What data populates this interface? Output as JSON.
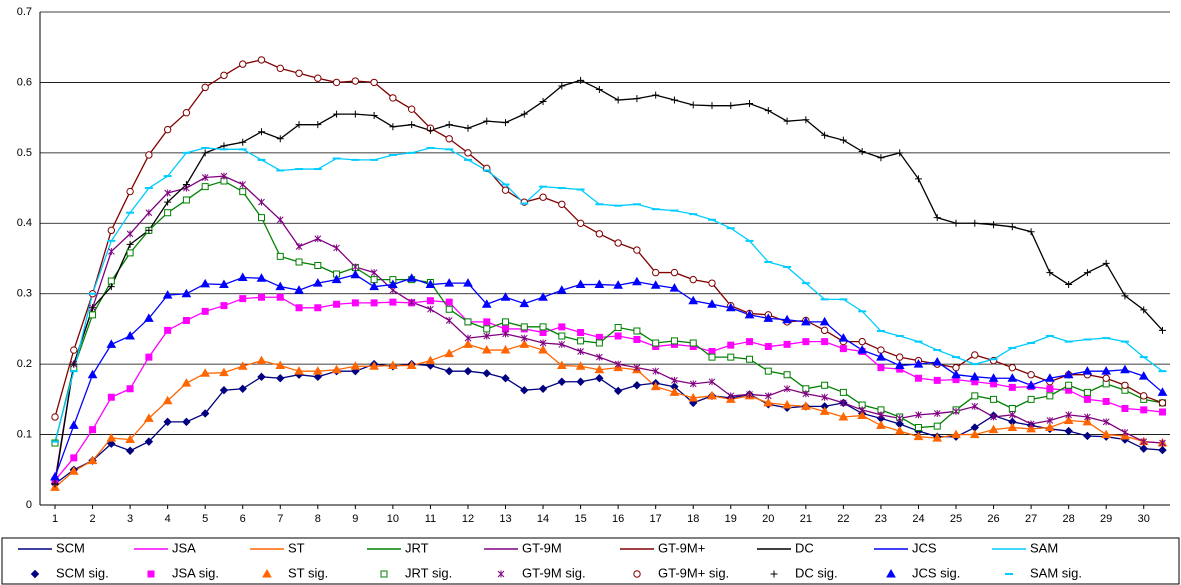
{
  "chart_data": {
    "type": "line",
    "x": [
      1,
      1.5,
      2,
      2.5,
      3,
      3.5,
      4,
      4.5,
      5,
      5.5,
      6,
      6.5,
      7,
      7.5,
      8,
      8.5,
      9,
      9.5,
      10,
      10.5,
      11,
      11.5,
      12,
      12.5,
      13,
      13.5,
      14,
      14.5,
      15,
      15.5,
      16,
      16.5,
      17,
      17.5,
      18,
      18.5,
      19,
      19.5,
      20,
      20.5,
      21,
      21.5,
      22,
      22.5,
      23,
      23.5,
      24,
      24.5,
      25,
      25.5,
      26,
      26.5,
      27,
      27.5,
      28,
      28.5,
      29,
      29.5,
      30,
      30.5
    ],
    "xlim": [
      0.6,
      30.7
    ],
    "xticks": [
      1,
      2,
      3,
      4,
      5,
      6,
      7,
      8,
      9,
      10,
      11,
      12,
      13,
      14,
      15,
      16,
      17,
      18,
      19,
      20,
      21,
      22,
      23,
      24,
      25,
      26,
      27,
      28,
      29,
      30
    ],
    "ylim": [
      0,
      0.7
    ],
    "yticks": [
      0,
      0.1,
      0.2,
      0.3,
      0.4,
      0.5,
      0.6,
      0.7
    ],
    "grid": true,
    "series": [
      {
        "name": "SCM",
        "marker_name": "SCM sig.",
        "color": "#000080",
        "marker": "diamond",
        "values": [
          0.03,
          0.05,
          0.063,
          0.087,
          0.077,
          0.09,
          0.118,
          0.118,
          0.13,
          0.163,
          0.165,
          0.182,
          0.18,
          0.185,
          0.182,
          0.19,
          0.19,
          0.2,
          0.197,
          0.2,
          0.198,
          0.19,
          0.19,
          0.187,
          0.18,
          0.163,
          0.165,
          0.175,
          0.175,
          0.18,
          0.162,
          0.17,
          0.173,
          0.168,
          0.145,
          0.155,
          0.152,
          0.157,
          0.143,
          0.138,
          0.14,
          0.14,
          0.145,
          0.13,
          0.123,
          0.115,
          0.105,
          0.097,
          0.097,
          0.11,
          0.127,
          0.118,
          0.113,
          0.108,
          0.105,
          0.098,
          0.097,
          0.093,
          0.08,
          0.078
        ]
      },
      {
        "name": "JSA",
        "marker_name": "JSA sig.",
        "color": "#ff00ff",
        "marker": "square",
        "values": [
          0.035,
          0.067,
          0.107,
          0.153,
          0.165,
          0.21,
          0.248,
          0.262,
          0.275,
          0.283,
          0.293,
          0.295,
          0.295,
          0.28,
          0.28,
          0.285,
          0.287,
          0.287,
          0.288,
          0.287,
          0.29,
          0.288,
          0.26,
          0.26,
          0.25,
          0.25,
          0.245,
          0.253,
          0.245,
          0.238,
          0.24,
          0.235,
          0.225,
          0.228,
          0.225,
          0.218,
          0.227,
          0.232,
          0.225,
          0.228,
          0.232,
          0.232,
          0.222,
          0.218,
          0.195,
          0.193,
          0.18,
          0.177,
          0.178,
          0.175,
          0.172,
          0.167,
          0.168,
          0.165,
          0.163,
          0.15,
          0.147,
          0.137,
          0.135,
          0.132
        ]
      },
      {
        "name": "ST",
        "marker_name": "ST sig.",
        "color": "#ff6600",
        "marker": "triangle",
        "values": [
          0.025,
          0.048,
          0.063,
          0.095,
          0.093,
          0.123,
          0.148,
          0.173,
          0.187,
          0.188,
          0.197,
          0.205,
          0.198,
          0.19,
          0.19,
          0.192,
          0.197,
          0.197,
          0.198,
          0.198,
          0.205,
          0.215,
          0.228,
          0.22,
          0.22,
          0.228,
          0.22,
          0.198,
          0.197,
          0.192,
          0.195,
          0.192,
          0.168,
          0.16,
          0.152,
          0.155,
          0.15,
          0.155,
          0.145,
          0.142,
          0.14,
          0.133,
          0.125,
          0.127,
          0.113,
          0.105,
          0.097,
          0.095,
          0.1,
          0.1,
          0.107,
          0.11,
          0.108,
          0.11,
          0.12,
          0.118,
          0.1,
          0.098,
          0.09,
          0.088
        ]
      },
      {
        "name": "JRT",
        "marker_name": "JRT sig.",
        "color": "#008000",
        "marker": "open-square",
        "values": [
          0.088,
          0.195,
          0.27,
          0.318,
          0.358,
          0.39,
          0.415,
          0.433,
          0.452,
          0.46,
          0.445,
          0.408,
          0.353,
          0.345,
          0.34,
          0.328,
          0.337,
          0.32,
          0.32,
          0.32,
          0.316,
          0.278,
          0.26,
          0.25,
          0.26,
          0.253,
          0.253,
          0.24,
          0.233,
          0.23,
          0.252,
          0.247,
          0.23,
          0.233,
          0.23,
          0.21,
          0.21,
          0.207,
          0.19,
          0.185,
          0.165,
          0.17,
          0.16,
          0.142,
          0.135,
          0.125,
          0.11,
          0.112,
          0.135,
          0.155,
          0.15,
          0.137,
          0.15,
          0.155,
          0.17,
          0.16,
          0.172,
          0.163,
          0.15,
          0.145
        ]
      },
      {
        "name": "GT-9M",
        "marker_name": "GT-9M sig.",
        "color": "#800080",
        "marker": "asterisk",
        "values": [
          0.035,
          0.2,
          0.28,
          0.36,
          0.385,
          0.415,
          0.443,
          0.45,
          0.465,
          0.467,
          0.455,
          0.43,
          0.405,
          0.367,
          0.378,
          0.365,
          0.338,
          0.33,
          0.305,
          0.288,
          0.278,
          0.262,
          0.237,
          0.24,
          0.243,
          0.237,
          0.23,
          0.228,
          0.218,
          0.21,
          0.2,
          0.195,
          0.19,
          0.177,
          0.172,
          0.175,
          0.155,
          0.157,
          0.155,
          0.165,
          0.158,
          0.153,
          0.145,
          0.135,
          0.128,
          0.123,
          0.128,
          0.13,
          0.133,
          0.14,
          0.125,
          0.128,
          0.115,
          0.12,
          0.128,
          0.125,
          0.118,
          0.103,
          0.09,
          0.088
        ]
      },
      {
        "name": "GT-9M+",
        "marker_name": "GT-9M+ sig.",
        "color": "#800000",
        "marker": "open-circle",
        "values": [
          0.125,
          0.22,
          0.3,
          0.39,
          0.445,
          0.497,
          0.533,
          0.557,
          0.593,
          0.61,
          0.626,
          0.632,
          0.62,
          0.613,
          0.606,
          0.6,
          0.602,
          0.6,
          0.578,
          0.562,
          0.535,
          0.52,
          0.5,
          0.478,
          0.447,
          0.43,
          0.437,
          0.427,
          0.4,
          0.385,
          0.372,
          0.362,
          0.33,
          0.33,
          0.32,
          0.315,
          0.283,
          0.272,
          0.27,
          0.26,
          0.262,
          0.248,
          0.232,
          0.232,
          0.22,
          0.21,
          0.205,
          0.2,
          0.195,
          0.213,
          0.205,
          0.195,
          0.185,
          0.175,
          0.185,
          0.185,
          0.18,
          0.17,
          0.155,
          0.145
        ]
      },
      {
        "name": "DC",
        "marker_name": "DC sig.",
        "color": "#000000",
        "marker": "plus",
        "values": [
          0.03,
          0.2,
          0.28,
          0.31,
          0.37,
          0.39,
          0.43,
          0.455,
          0.5,
          0.51,
          0.515,
          0.53,
          0.52,
          0.54,
          0.54,
          0.555,
          0.555,
          0.553,
          0.537,
          0.54,
          0.532,
          0.54,
          0.535,
          0.545,
          0.543,
          0.555,
          0.573,
          0.595,
          0.603,
          0.59,
          0.575,
          0.577,
          0.582,
          0.575,
          0.568,
          0.567,
          0.567,
          0.57,
          0.56,
          0.545,
          0.547,
          0.525,
          0.518,
          0.502,
          0.493,
          0.5,
          0.463,
          0.408,
          0.4,
          0.4,
          0.398,
          0.395,
          0.388,
          0.33,
          0.313,
          0.33,
          0.343,
          0.297,
          0.277,
          0.248
        ]
      },
      {
        "name": "JCS",
        "marker_name": "JCS sig.",
        "color": "#0000ff",
        "marker": "triangle",
        "values": [
          0.04,
          0.113,
          0.185,
          0.228,
          0.24,
          0.265,
          0.298,
          0.3,
          0.314,
          0.313,
          0.323,
          0.322,
          0.31,
          0.305,
          0.315,
          0.32,
          0.327,
          0.31,
          0.313,
          0.322,
          0.313,
          0.315,
          0.315,
          0.285,
          0.295,
          0.286,
          0.295,
          0.305,
          0.313,
          0.313,
          0.312,
          0.317,
          0.312,
          0.308,
          0.29,
          0.285,
          0.28,
          0.27,
          0.265,
          0.263,
          0.26,
          0.26,
          0.237,
          0.22,
          0.21,
          0.198,
          0.2,
          0.203,
          0.185,
          0.182,
          0.18,
          0.18,
          0.17,
          0.18,
          0.185,
          0.19,
          0.19,
          0.192,
          0.183,
          0.16
        ]
      },
      {
        "name": "SAM",
        "marker_name": "SAM sig.",
        "color": "#00ccff",
        "marker": "dash",
        "values": [
          0.09,
          0.19,
          0.3,
          0.375,
          0.415,
          0.45,
          0.467,
          0.5,
          0.507,
          0.505,
          0.505,
          0.49,
          0.475,
          0.477,
          0.477,
          0.492,
          0.49,
          0.49,
          0.497,
          0.5,
          0.507,
          0.505,
          0.49,
          0.475,
          0.455,
          0.428,
          0.452,
          0.45,
          0.448,
          0.427,
          0.425,
          0.427,
          0.42,
          0.418,
          0.413,
          0.405,
          0.393,
          0.375,
          0.345,
          0.338,
          0.315,
          0.292,
          0.292,
          0.275,
          0.247,
          0.24,
          0.232,
          0.22,
          0.21,
          0.2,
          0.207,
          0.223,
          0.23,
          0.24,
          0.232,
          0.235,
          0.237,
          0.232,
          0.21,
          0.19
        ]
      }
    ]
  }
}
